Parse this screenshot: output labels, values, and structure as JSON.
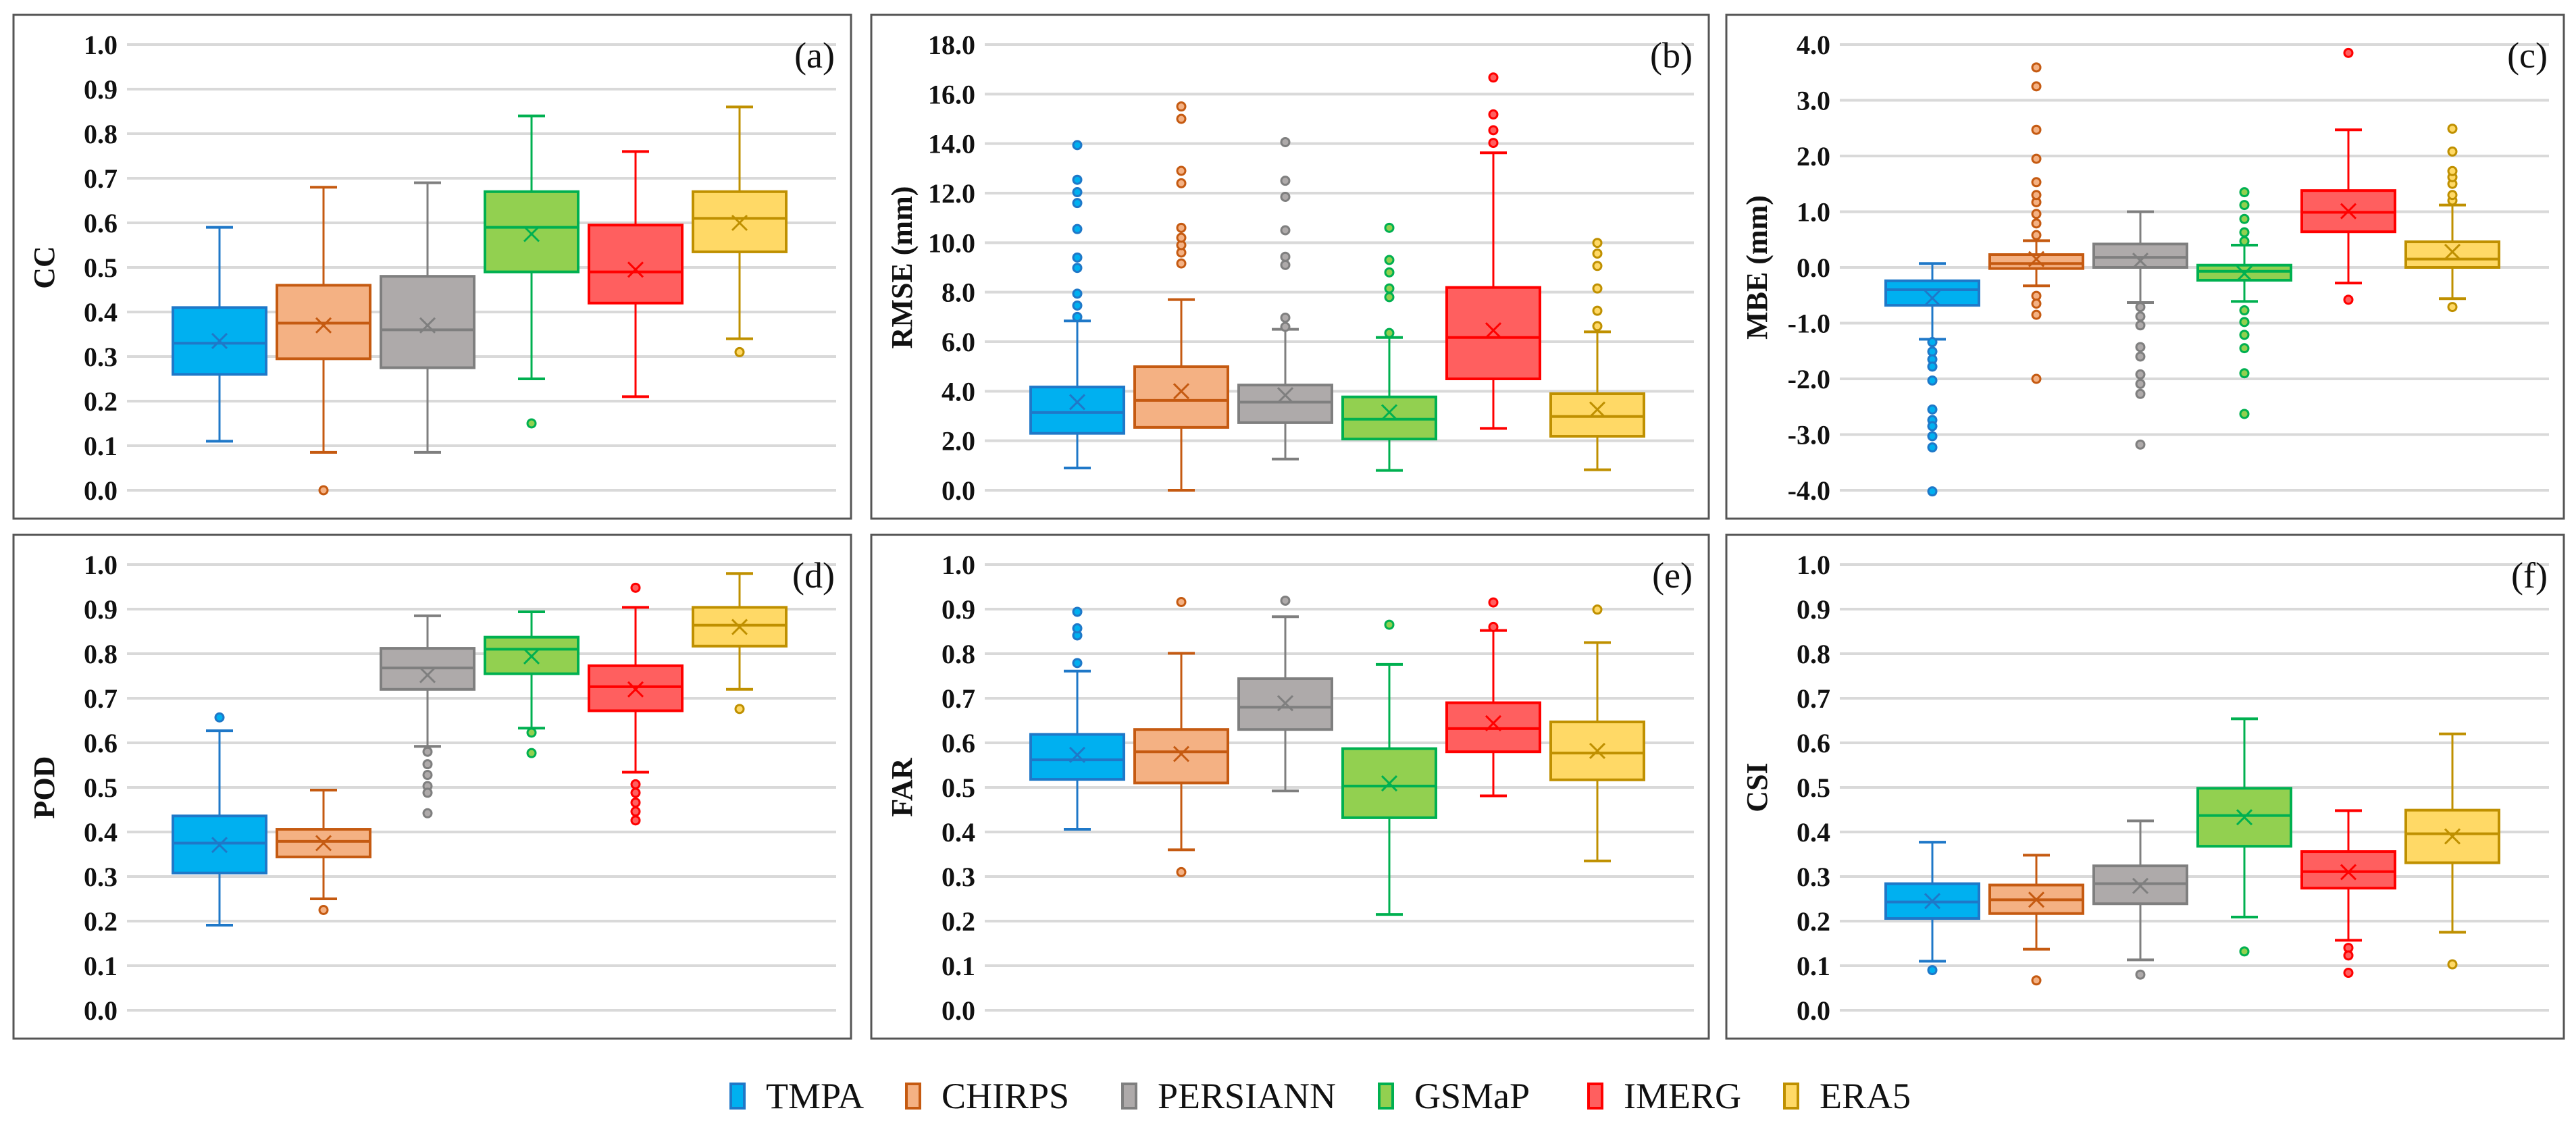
{
  "chart_data": {
    "type": "box",
    "categories": [
      "TMPA",
      "CHIRPS",
      "PERSIANN",
      "GSMaP",
      "IMERG",
      "ERA5"
    ],
    "colors": {
      "TMPA": {
        "fill": "#00B0F0",
        "stroke": "#1F78C8"
      },
      "CHIRPS": {
        "fill": "#F4B183",
        "stroke": "#C55A11"
      },
      "PERSIANN": {
        "fill": "#AEAAAA",
        "stroke": "#7F7F7F"
      },
      "GSMaP": {
        "fill": "#92D050",
        "stroke": "#00B050"
      },
      "IMERG": {
        "fill": "#FF5F5F",
        "stroke": "#FF0000"
      },
      "ERA5": {
        "fill": "#FFD966",
        "stroke": "#BF9000"
      }
    },
    "legend": {
      "placement": "bottom-center",
      "items": [
        "TMPA",
        "CHIRPS",
        "PERSIANN",
        "GSMaP",
        "IMERG",
        "ERA5"
      ]
    },
    "panels": [
      {
        "label": "(a)",
        "ylabel": "CC",
        "ylim": [
          0,
          1
        ],
        "ticks": [
          "0.0",
          "0.1",
          "0.2",
          "0.3",
          "0.4",
          "0.5",
          "0.6",
          "0.7",
          "0.8",
          "0.9",
          "1.0"
        ],
        "tick_values": [
          0,
          0.1,
          0.2,
          0.3,
          0.4,
          0.5,
          0.6,
          0.7,
          0.8,
          0.9,
          1.0
        ],
        "boxes": [
          {
            "min": 0.11,
            "q1": 0.26,
            "median": 0.33,
            "q3": 0.41,
            "max": 0.59,
            "mean": 0.335,
            "outliers": []
          },
          {
            "min": 0.085,
            "q1": 0.295,
            "median": 0.375,
            "q3": 0.46,
            "max": 0.68,
            "mean": 0.37,
            "outliers": [
              0.0
            ]
          },
          {
            "min": 0.085,
            "q1": 0.275,
            "median": 0.36,
            "q3": 0.48,
            "max": 0.69,
            "mean": 0.37,
            "outliers": []
          },
          {
            "min": 0.25,
            "q1": 0.49,
            "median": 0.59,
            "q3": 0.67,
            "max": 0.84,
            "mean": 0.575,
            "outliers": [
              0.15
            ]
          },
          {
            "min": 0.21,
            "q1": 0.42,
            "median": 0.49,
            "q3": 0.595,
            "max": 0.76,
            "mean": 0.495,
            "outliers": []
          },
          {
            "min": 0.34,
            "q1": 0.535,
            "median": 0.61,
            "q3": 0.67,
            "max": 0.86,
            "mean": 0.6,
            "outliers": [
              0.31
            ]
          }
        ]
      },
      {
        "label": "(b)",
        "ylabel": "RMSE (mm)",
        "ylim": [
          0,
          18
        ],
        "ticks": [
          "0.0",
          "2.0",
          "4.0",
          "6.0",
          "8.0",
          "10.0",
          "12.0",
          "14.0",
          "16.0",
          "18.0"
        ],
        "tick_values": [
          0,
          2,
          4,
          6,
          8,
          10,
          12,
          14,
          16,
          18
        ],
        "boxes": [
          {
            "min": 0.9,
            "q1": 2.3,
            "median": 3.14,
            "q3": 4.17,
            "max": 6.84,
            "mean": 3.56,
            "outliers": [
              7.0,
              7.46,
              7.94,
              8.98,
              9.4,
              10.55,
              11.6,
              12.04,
              12.54,
              13.94
            ]
          },
          {
            "min": 0.0,
            "q1": 2.54,
            "median": 3.63,
            "q3": 4.99,
            "max": 7.7,
            "mean": 4.0,
            "outliers": [
              9.16,
              9.6,
              9.9,
              10.2,
              10.6,
              12.4,
              12.9,
              15.0,
              15.5
            ]
          },
          {
            "min": 1.26,
            "q1": 2.73,
            "median": 3.56,
            "q3": 4.25,
            "max": 6.5,
            "mean": 3.84,
            "outliers": [
              6.6,
              6.97,
              9.1,
              9.43,
              10.5,
              11.85,
              12.5,
              14.06
            ]
          },
          {
            "min": 0.8,
            "q1": 2.07,
            "median": 2.87,
            "q3": 3.77,
            "max": 6.17,
            "mean": 3.15,
            "outliers": [
              6.35,
              7.8,
              8.15,
              8.8,
              9.3,
              10.6
            ]
          },
          {
            "min": 2.5,
            "q1": 4.5,
            "median": 6.17,
            "q3": 8.19,
            "max": 13.63,
            "mean": 6.46,
            "outliers": [
              14.03,
              14.54,
              15.18,
              16.67
            ]
          },
          {
            "min": 0.83,
            "q1": 2.18,
            "median": 2.98,
            "q3": 3.9,
            "max": 6.4,
            "mean": 3.26,
            "outliers": [
              6.63,
              7.25,
              8.15,
              9.06,
              9.56,
              9.99
            ]
          }
        ]
      },
      {
        "label": "(c)",
        "ylabel": "MBE (mm)",
        "ylim": [
          -4,
          4
        ],
        "ticks": [
          "-4.0",
          "-3.0",
          "-2.0",
          "-1.0",
          "0.0",
          "1.0",
          "2.0",
          "3.0",
          "4.0"
        ],
        "tick_values": [
          -4,
          -3,
          -2,
          -1,
          0,
          1,
          2,
          3,
          4
        ],
        "boxes": [
          {
            "min": -1.29,
            "q1": -0.68,
            "median": -0.4,
            "q3": -0.24,
            "max": 0.07,
            "mean": -0.55,
            "outliers": [
              -1.34,
              -1.51,
              -1.65,
              -1.78,
              -2.03,
              -2.55,
              -2.74,
              -2.85,
              -3.03,
              -3.23,
              -4.02
            ]
          },
          {
            "min": -0.33,
            "q1": -0.02,
            "median": 0.07,
            "q3": 0.23,
            "max": 0.48,
            "mean": 0.15,
            "outliers": [
              0.58,
              0.79,
              0.96,
              1.17,
              1.3,
              1.53,
              1.95,
              2.47,
              3.25,
              3.59,
              -0.51,
              -0.65,
              -0.85,
              -2.0
            ]
          },
          {
            "min": -0.63,
            "q1": 0.0,
            "median": 0.18,
            "q3": 0.42,
            "max": 1.0,
            "mean": 0.12,
            "outliers": [
              -0.71,
              -0.88,
              -1.04,
              -1.43,
              -1.6,
              -1.92,
              -2.09,
              -2.27,
              -3.18
            ]
          },
          {
            "min": -0.61,
            "q1": -0.23,
            "median": -0.07,
            "q3": 0.04,
            "max": 0.4,
            "mean": -0.11,
            "outliers": [
              0.47,
              0.63,
              0.87,
              1.12,
              1.35,
              -0.77,
              -0.98,
              -1.21,
              -1.45,
              -1.9,
              -2.63
            ]
          },
          {
            "min": -0.28,
            "q1": 0.64,
            "median": 0.99,
            "q3": 1.38,
            "max": 2.47,
            "mean": 1.01,
            "outliers": [
              3.85,
              -0.58
            ]
          },
          {
            "min": -0.56,
            "q1": 0.0,
            "median": 0.15,
            "q3": 0.46,
            "max": 1.12,
            "mean": 0.28,
            "outliers": [
              1.2,
              1.3,
              1.5,
              1.62,
              1.73,
              2.08,
              2.49,
              -0.71
            ]
          }
        ]
      },
      {
        "label": "(d)",
        "ylabel": "POD",
        "ylim": [
          0,
          1
        ],
        "ticks": [
          "0.0",
          "0.1",
          "0.2",
          "0.3",
          "0.4",
          "0.5",
          "0.6",
          "0.7",
          "0.8",
          "0.9",
          "1.0"
        ],
        "tick_values": [
          0,
          0.1,
          0.2,
          0.3,
          0.4,
          0.5,
          0.6,
          0.7,
          0.8,
          0.9,
          1.0
        ],
        "boxes": [
          {
            "min": 0.191,
            "q1": 0.308,
            "median": 0.375,
            "q3": 0.436,
            "max": 0.627,
            "mean": 0.371,
            "outliers": [
              0.657
            ]
          },
          {
            "min": 0.25,
            "q1": 0.344,
            "median": 0.379,
            "q3": 0.406,
            "max": 0.494,
            "mean": 0.375,
            "outliers": [
              0.225
            ]
          },
          {
            "min": 0.592,
            "q1": 0.72,
            "median": 0.768,
            "q3": 0.812,
            "max": 0.885,
            "mean": 0.752,
            "outliers": [
              0.58,
              0.552,
              0.528,
              0.503,
              0.488,
              0.442
            ]
          },
          {
            "min": 0.633,
            "q1": 0.755,
            "median": 0.81,
            "q3": 0.837,
            "max": 0.894,
            "mean": 0.794,
            "outliers": [
              0.623,
              0.577
            ]
          },
          {
            "min": 0.534,
            "q1": 0.672,
            "median": 0.726,
            "q3": 0.773,
            "max": 0.904,
            "mean": 0.72,
            "outliers": [
              0.948,
              0.507,
              0.488,
              0.466,
              0.446,
              0.426
            ]
          },
          {
            "min": 0.72,
            "q1": 0.817,
            "median": 0.864,
            "q3": 0.904,
            "max": 0.98,
            "mean": 0.86,
            "outliers": [
              0.676
            ]
          }
        ]
      },
      {
        "label": "(e)",
        "ylabel": "FAR",
        "ylim": [
          0,
          1
        ],
        "ticks": [
          "0.0",
          "0.1",
          "0.2",
          "0.3",
          "0.4",
          "0.5",
          "0.6",
          "0.7",
          "0.8",
          "0.9",
          "1.0"
        ],
        "tick_values": [
          0,
          0.1,
          0.2,
          0.3,
          0.4,
          0.5,
          0.6,
          0.7,
          0.8,
          0.9,
          1.0
        ],
        "boxes": [
          {
            "min": 0.406,
            "q1": 0.518,
            "median": 0.562,
            "q3": 0.619,
            "max": 0.761,
            "mean": 0.573,
            "outliers": [
              0.779,
              0.841,
              0.857,
              0.894
            ]
          },
          {
            "min": 0.36,
            "q1": 0.51,
            "median": 0.58,
            "q3": 0.63,
            "max": 0.801,
            "mean": 0.575,
            "outliers": [
              0.916,
              0.31
            ]
          },
          {
            "min": 0.492,
            "q1": 0.63,
            "median": 0.68,
            "q3": 0.744,
            "max": 0.883,
            "mean": 0.689,
            "outliers": [
              0.919
            ]
          },
          {
            "min": 0.215,
            "q1": 0.432,
            "median": 0.503,
            "q3": 0.587,
            "max": 0.776,
            "mean": 0.509,
            "outliers": [
              0.865
            ]
          },
          {
            "min": 0.481,
            "q1": 0.58,
            "median": 0.632,
            "q3": 0.69,
            "max": 0.852,
            "mean": 0.644,
            "outliers": [
              0.86,
              0.915
            ]
          },
          {
            "min": 0.335,
            "q1": 0.517,
            "median": 0.577,
            "q3": 0.647,
            "max": 0.825,
            "mean": 0.582,
            "outliers": [
              0.899
            ]
          }
        ]
      },
      {
        "label": "(f)",
        "ylabel": "CSI",
        "ylim": [
          0,
          1
        ],
        "ticks": [
          "0.0",
          "0.1",
          "0.2",
          "0.3",
          "0.4",
          "0.5",
          "0.6",
          "0.7",
          "0.8",
          "0.9",
          "1.0"
        ],
        "tick_values": [
          0,
          0.1,
          0.2,
          0.3,
          0.4,
          0.5,
          0.6,
          0.7,
          0.8,
          0.9,
          1.0
        ],
        "boxes": [
          {
            "min": 0.11,
            "q1": 0.206,
            "median": 0.243,
            "q3": 0.284,
            "max": 0.377,
            "mean": 0.245,
            "outliers": [
              0.09
            ]
          },
          {
            "min": 0.137,
            "q1": 0.217,
            "median": 0.248,
            "q3": 0.281,
            "max": 0.348,
            "mean": 0.248,
            "outliers": [
              0.067
            ]
          },
          {
            "min": 0.113,
            "q1": 0.239,
            "median": 0.284,
            "q3": 0.324,
            "max": 0.425,
            "mean": 0.279,
            "outliers": [
              0.08
            ]
          },
          {
            "min": 0.209,
            "q1": 0.368,
            "median": 0.437,
            "q3": 0.498,
            "max": 0.654,
            "mean": 0.433,
            "outliers": [
              0.132
            ]
          },
          {
            "min": 0.157,
            "q1": 0.274,
            "median": 0.311,
            "q3": 0.356,
            "max": 0.448,
            "mean": 0.31,
            "outliers": [
              0.14,
              0.123,
              0.084
            ]
          },
          {
            "min": 0.175,
            "q1": 0.331,
            "median": 0.396,
            "q3": 0.449,
            "max": 0.62,
            "mean": 0.39,
            "outliers": [
              0.103
            ]
          }
        ]
      }
    ]
  }
}
